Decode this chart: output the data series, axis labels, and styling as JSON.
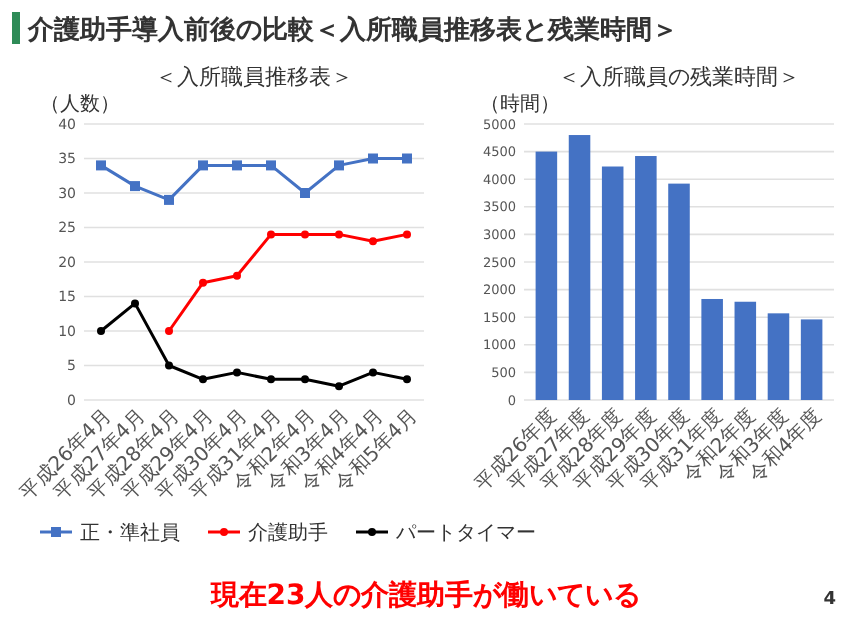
{
  "chart_data": [
    {
      "type": "line",
      "title": "＜入所職員推移表＞",
      "ylabel": "（人数）",
      "categories": [
        "平成26年4月",
        "平成27年4月",
        "平成28年4月",
        "平成29年4月",
        "平成30年4月",
        "平成31年4月",
        "令和2年4月",
        "令和3年4月",
        "令和4年4月",
        "令和5年4月"
      ],
      "series": [
        {
          "name": "正・準社員",
          "color": "#4472c4",
          "marker": "square",
          "values": [
            34,
            31,
            29,
            34,
            34,
            34,
            30,
            34,
            35,
            35
          ]
        },
        {
          "name": "介護助手",
          "color": "#ff0000",
          "marker": "circle",
          "values": [
            null,
            null,
            10,
            17,
            18,
            24,
            24,
            24,
            23,
            24
          ]
        },
        {
          "name": "パートタイマー",
          "color": "#000000",
          "marker": "circle",
          "values": [
            10,
            14,
            5,
            3,
            4,
            3,
            3,
            2,
            4,
            3
          ]
        }
      ],
      "ylim": [
        0,
        40
      ],
      "yticks": [
        0,
        5,
        10,
        15,
        20,
        25,
        30,
        35,
        40
      ],
      "grid": "y",
      "legend": "bottom",
      "line_style": "solid",
      "annotations": [
        "介護助手導入前後の比較＜入所職員推移表と残業時間＞",
        "現在23人の介護助手が働いている"
      ]
    },
    {
      "type": "bar",
      "title": "＜入所職員の残業時間＞",
      "ylabel": "（時間）",
      "categories": [
        "平成26年度",
        "平成27年度",
        "平成28年度",
        "平成29年度",
        "平成30年度",
        "平成31年度",
        "令和2年度",
        "令和3年度",
        "令和4年度"
      ],
      "values": [
        4500,
        4800,
        4230,
        4420,
        3920,
        1830,
        1780,
        1570,
        1460
      ],
      "color": "#4472c4",
      "ylim": [
        0,
        5000
      ],
      "yticks": [
        0,
        500,
        1000,
        1500,
        2000,
        2500,
        3000,
        3500,
        4000,
        4500,
        5000
      ],
      "grid": "y",
      "annotations": [
        "4"
      ]
    }
  ]
}
